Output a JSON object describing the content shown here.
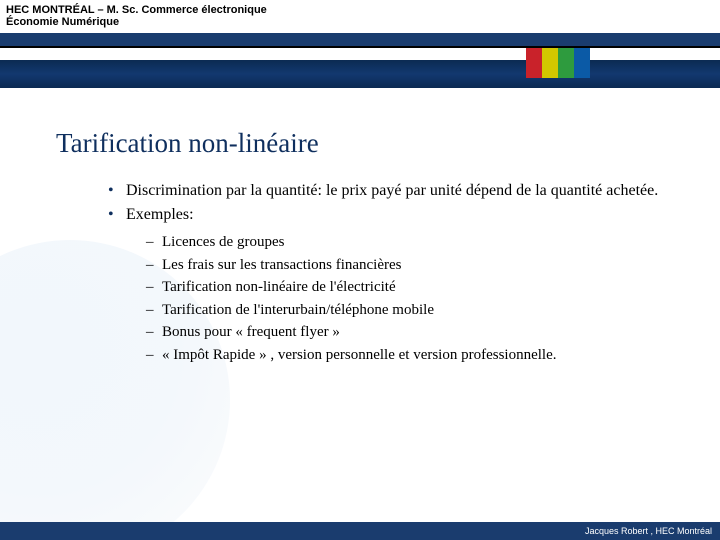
{
  "header": {
    "line1": "HEC MONTRÉAL – M. Sc. Commerce électronique",
    "line2": "Économie Numérique"
  },
  "color_blocks": [
    "#c9222a",
    "#d2c800",
    "#2e9b3e",
    "#0b5aa6"
  ],
  "title": "Tarification non-linéaire",
  "bullets": [
    "Discrimination par la quantité: le prix payé par unité dépend de la quantité achetée.",
    "Exemples:"
  ],
  "sub_bullets": [
    "Licences de groupes",
    "Les frais sur les transactions financières",
    "Tarification non-linéaire de l'électricité",
    "Tarification de l'interurbain/téléphone mobile",
    "Bonus pour « frequent flyer »",
    "« Impôt Rapide » , version personnelle et version professionnelle."
  ],
  "footer": "Jacques Robert , HEC Montréal",
  "colors": {
    "title_color": "#0f2f5e",
    "banner_color": "#12386f",
    "footer_bg": "#1a3c6e"
  }
}
